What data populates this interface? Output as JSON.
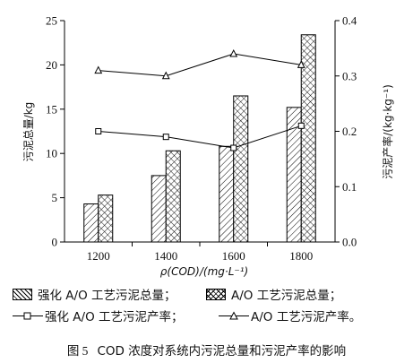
{
  "chart_data": {
    "type": "bar",
    "categories": [
      "1200",
      "1400",
      "1600",
      "1800"
    ],
    "series": [
      {
        "name": "强化 A/O 工艺污泥总量",
        "type": "bar",
        "axis": "left",
        "pattern": "diagonal-hatch",
        "values": [
          4.3,
          7.5,
          10.8,
          15.2
        ]
      },
      {
        "name": "A/O 工艺污泥总量",
        "type": "bar",
        "axis": "left",
        "pattern": "cross-hatch",
        "values": [
          5.3,
          10.3,
          16.5,
          23.4
        ]
      },
      {
        "name": "强化 A/O 工艺污泥产率",
        "type": "line",
        "axis": "right",
        "marker": "square",
        "values": [
          0.2,
          0.19,
          0.17,
          0.21
        ]
      },
      {
        "name": "A/O 工艺污泥产率",
        "type": "line",
        "axis": "right",
        "marker": "triangle",
        "values": [
          0.31,
          0.3,
          0.34,
          0.32
        ]
      }
    ],
    "xlabel": "ρ(COD)/(mg·L⁻¹)",
    "ylabel_left": "污泥总量/kg",
    "ylabel_right": "污泥产率/(kg·kg⁻¹)",
    "ylim_left": [
      0,
      25
    ],
    "ylim_right": [
      0,
      0.4
    ],
    "yticks_left": [
      "0",
      "5",
      "10",
      "15",
      "20",
      "25"
    ],
    "yticks_right": [
      "0.0",
      "0.1",
      "0.2",
      "0.3",
      "0.4"
    ],
    "grid": false,
    "legend_position": "bottom"
  },
  "legend": {
    "item1": "强化 A/O 工艺污泥总量；",
    "item2": "A/O 工艺污泥总量；",
    "item3": "强化 A/O 工艺污泥产率；",
    "item4": "A/O 工艺污泥产率。"
  },
  "caption": {
    "fig_num": "图 5",
    "text": "COD 浓度对系统内污泥总量和污泥产率的影响"
  }
}
